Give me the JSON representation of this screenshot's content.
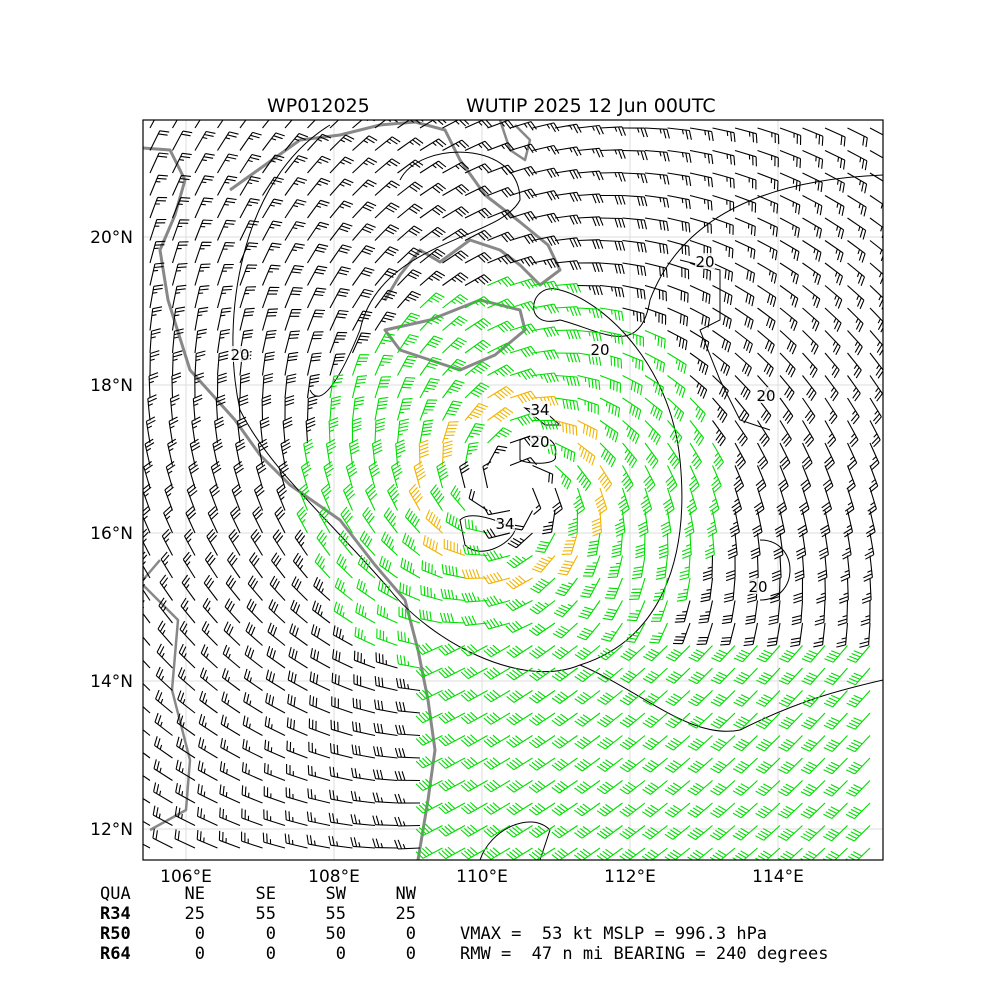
{
  "header": {
    "storm_id": "WP012025",
    "title": "WUTIP 2025 12 Jun 00UTC"
  },
  "axes": {
    "lat_labels": [
      "12°N",
      "14°N",
      "16°N",
      "18°N",
      "20°N"
    ],
    "lon_labels": [
      "106°E",
      "108°E",
      "110°E",
      "112°E",
      "114°E"
    ]
  },
  "contour_labels": [
    "20",
    "20",
    "20",
    "20",
    "20",
    "20",
    "34",
    "34"
  ],
  "table": {
    "header": [
      "QUA",
      "NE",
      "SE",
      "SW",
      "NW"
    ],
    "rows": [
      [
        "R34",
        25,
        55,
        55,
        25
      ],
      [
        "R50",
        0,
        0,
        50,
        0
      ],
      [
        "R64",
        0,
        0,
        0,
        0
      ]
    ]
  },
  "info": [
    "VMAX =  53 kt MSLP = 996.3 hPa",
    "RMW =  47 n mi BEARING = 240 degrees"
  ]
}
